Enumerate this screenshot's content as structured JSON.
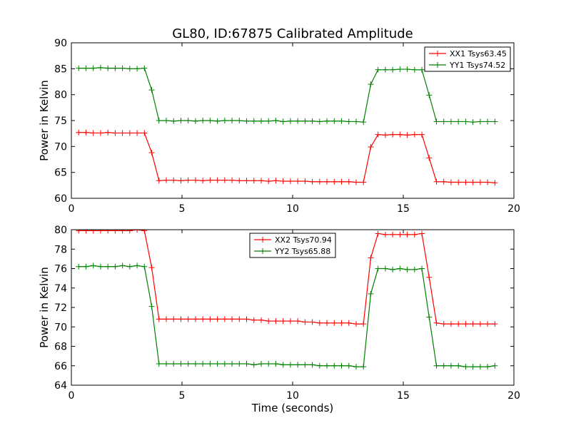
{
  "figure": {
    "title": "GL80, ID:67875 Calibrated Amplitude"
  },
  "chart_data": [
    {
      "type": "line",
      "title": "GL80, ID:67875 Calibrated Amplitude",
      "xlabel": "",
      "ylabel": "Power in Kelvin",
      "xlim": [
        0,
        20
      ],
      "ylim": [
        60,
        90
      ],
      "xticks": [
        0,
        5,
        10,
        15,
        20
      ],
      "yticks": [
        60,
        65,
        70,
        75,
        80,
        85,
        90
      ],
      "grid": false,
      "legend_position": "top-right",
      "x": [
        0.33,
        0.66,
        0.99,
        1.32,
        1.65,
        1.98,
        2.31,
        2.64,
        2.97,
        3.3,
        3.63,
        3.96,
        4.29,
        4.62,
        4.95,
        5.28,
        5.61,
        5.94,
        6.27,
        6.6,
        6.93,
        7.26,
        7.59,
        7.92,
        8.25,
        8.58,
        8.91,
        9.24,
        9.57,
        9.9,
        10.23,
        10.56,
        10.89,
        11.22,
        11.55,
        11.88,
        12.21,
        12.54,
        12.87,
        13.2,
        13.53,
        13.86,
        14.19,
        14.52,
        14.85,
        15.18,
        15.51,
        15.84,
        16.17,
        16.5,
        16.83,
        17.16,
        17.49,
        17.82,
        18.15,
        18.48,
        18.81,
        19.14
      ],
      "series": [
        {
          "name": "XX1 Tsys63.45",
          "color": "#ff0000",
          "values": [
            72.7,
            72.7,
            72.6,
            72.6,
            72.7,
            72.6,
            72.6,
            72.6,
            72.6,
            72.6,
            68.8,
            63.4,
            63.5,
            63.5,
            63.4,
            63.5,
            63.5,
            63.4,
            63.5,
            63.5,
            63.5,
            63.5,
            63.4,
            63.4,
            63.4,
            63.4,
            63.3,
            63.4,
            63.3,
            63.3,
            63.3,
            63.3,
            63.2,
            63.2,
            63.2,
            63.2,
            63.2,
            63.2,
            63.1,
            63.1,
            69.9,
            72.3,
            72.2,
            72.3,
            72.3,
            72.2,
            72.3,
            72.3,
            67.8,
            63.2,
            63.2,
            63.1,
            63.1,
            63.1,
            63.1,
            63.1,
            63.1,
            63.0
          ]
        },
        {
          "name": "YY1 Tsys74.52",
          "color": "#008000",
          "values": [
            85.1,
            85.1,
            85.1,
            85.2,
            85.1,
            85.1,
            85.1,
            85.0,
            85.0,
            85.1,
            80.9,
            75.0,
            75.0,
            74.9,
            75.0,
            75.0,
            74.9,
            75.0,
            75.0,
            74.9,
            75.0,
            75.0,
            75.0,
            74.9,
            74.9,
            74.9,
            74.9,
            75.0,
            74.8,
            74.9,
            74.9,
            74.9,
            74.9,
            74.8,
            74.9,
            74.9,
            74.9,
            74.8,
            74.8,
            74.7,
            82.0,
            84.8,
            84.8,
            84.8,
            84.9,
            84.9,
            84.8,
            84.8,
            79.9,
            74.8,
            74.8,
            74.8,
            74.8,
            74.8,
            74.7,
            74.8,
            74.8,
            74.8
          ]
        }
      ]
    },
    {
      "type": "line",
      "title": "",
      "xlabel": "Time (seconds)",
      "ylabel": "Power in Kelvin",
      "xlim": [
        0,
        20
      ],
      "ylim": [
        64,
        80
      ],
      "xticks": [
        0,
        5,
        10,
        15,
        20
      ],
      "yticks": [
        64,
        66,
        68,
        70,
        72,
        74,
        76,
        78,
        80
      ],
      "grid": false,
      "legend_position": "top-center",
      "x": [
        0.33,
        0.66,
        0.99,
        1.32,
        1.65,
        1.98,
        2.31,
        2.64,
        2.97,
        3.3,
        3.63,
        3.96,
        4.29,
        4.62,
        4.95,
        5.28,
        5.61,
        5.94,
        6.27,
        6.6,
        6.93,
        7.26,
        7.59,
        7.92,
        8.25,
        8.58,
        8.91,
        9.24,
        9.57,
        9.9,
        10.23,
        10.56,
        10.89,
        11.22,
        11.55,
        11.88,
        12.21,
        12.54,
        12.87,
        13.2,
        13.53,
        13.86,
        14.19,
        14.52,
        14.85,
        15.18,
        15.51,
        15.84,
        16.17,
        16.5,
        16.83,
        17.16,
        17.49,
        17.82,
        18.15,
        18.48,
        18.81,
        19.14
      ],
      "series": [
        {
          "name": "XX2 Tsys70.94",
          "color": "#ff0000",
          "values": [
            79.9,
            79.9,
            79.9,
            79.9,
            79.9,
            79.9,
            79.9,
            79.9,
            80.0,
            79.9,
            76.1,
            70.8,
            70.8,
            70.8,
            70.8,
            70.8,
            70.8,
            70.8,
            70.8,
            70.8,
            70.8,
            70.8,
            70.8,
            70.8,
            70.7,
            70.7,
            70.6,
            70.6,
            70.6,
            70.6,
            70.6,
            70.5,
            70.5,
            70.4,
            70.4,
            70.4,
            70.4,
            70.4,
            70.3,
            70.3,
            77.1,
            79.6,
            79.5,
            79.5,
            79.5,
            79.5,
            79.5,
            79.6,
            75.1,
            70.4,
            70.3,
            70.3,
            70.3,
            70.3,
            70.3,
            70.3,
            70.3,
            70.3
          ]
        },
        {
          "name": "YY2 Tsys65.88",
          "color": "#008000",
          "values": [
            76.2,
            76.2,
            76.3,
            76.2,
            76.2,
            76.2,
            76.3,
            76.2,
            76.3,
            76.2,
            72.1,
            66.2,
            66.2,
            66.2,
            66.2,
            66.2,
            66.2,
            66.2,
            66.2,
            66.2,
            66.2,
            66.2,
            66.2,
            66.2,
            66.1,
            66.2,
            66.2,
            66.2,
            66.1,
            66.1,
            66.1,
            66.1,
            66.1,
            66.0,
            66.0,
            66.0,
            66.0,
            66.0,
            65.9,
            65.9,
            73.4,
            76.0,
            76.0,
            75.9,
            76.0,
            75.9,
            75.9,
            76.0,
            71.0,
            66.0,
            66.0,
            66.0,
            66.0,
            65.9,
            65.9,
            65.9,
            65.9,
            66.0
          ]
        }
      ]
    }
  ]
}
